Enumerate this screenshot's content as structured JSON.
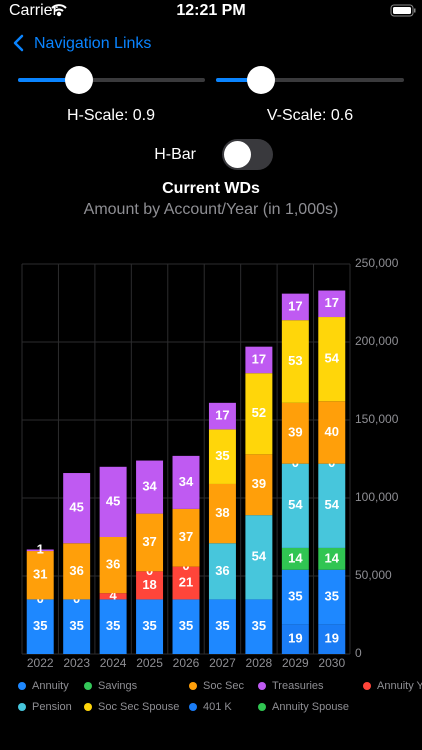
{
  "status_bar": {
    "carrier": "Carrier",
    "time": "12:21 PM"
  },
  "nav": {
    "back_label": "Navigation Links"
  },
  "controls": {
    "h_scale_label": "H-Scale: 0.9",
    "v_scale_label": "V-Scale: 0.6",
    "toggle_label": "H-Bar"
  },
  "chart_data": {
    "type": "stacked_bar",
    "title": "Current WDs",
    "subtitle": "Amount by Account/Year (in 1,000s)",
    "categories": [
      "2022",
      "2023",
      "2024",
      "2025",
      "2026",
      "2027",
      "2028",
      "2029",
      "2030"
    ],
    "series": [
      {
        "name": "401 K",
        "color": "#1a7cf5",
        "values": [
          null,
          null,
          null,
          null,
          null,
          null,
          null,
          19000,
          19000
        ],
        "value_labels": [
          null,
          null,
          null,
          null,
          null,
          null,
          null,
          "19",
          "19"
        ]
      },
      {
        "name": "Annuity",
        "color": "#1e88ff",
        "values": [
          35000,
          35000,
          35000,
          35000,
          35000,
          35000,
          35000,
          35000,
          35000
        ],
        "value_labels": [
          "35",
          "35",
          "35",
          "35",
          "35",
          "35",
          "35",
          "35",
          "35"
        ]
      },
      {
        "name": "Annuity Spouse",
        "color": "#30c552",
        "values": [
          null,
          null,
          null,
          null,
          null,
          null,
          null,
          14000,
          14000
        ],
        "value_labels": [
          null,
          null,
          null,
          null,
          null,
          null,
          null,
          "14",
          "14"
        ]
      },
      {
        "name": "Pension",
        "color": "#47c6dc",
        "values": [
          null,
          null,
          null,
          null,
          null,
          36000,
          54000,
          54000,
          54000
        ],
        "value_labels": [
          null,
          null,
          null,
          null,
          null,
          "36",
          "54",
          "54",
          "54"
        ]
      },
      {
        "name": "Annuity Y",
        "color": "#ff453a",
        "values": [
          0,
          0,
          4000,
          18000,
          21000,
          null,
          null,
          null,
          null
        ],
        "value_labels": [
          "0",
          "0",
          "4",
          "18",
          "21",
          null,
          null,
          null,
          null
        ]
      },
      {
        "name": "Savings",
        "color": "#34c759",
        "values": [
          null,
          null,
          null,
          0,
          0,
          null,
          null,
          0,
          0
        ],
        "value_labels": [
          null,
          null,
          null,
          "0",
          "0",
          null,
          null,
          "0",
          "0"
        ]
      },
      {
        "name": "Soc Sec",
        "color": "#ff9f0a",
        "values": [
          31000,
          36000,
          36000,
          37000,
          37000,
          38000,
          39000,
          39000,
          40000
        ],
        "value_labels": [
          "31",
          "36",
          "36",
          "37",
          "37",
          "38",
          "39",
          "39",
          "40"
        ]
      },
      {
        "name": "Soc Sec Spouse",
        "color": "#ffd60a",
        "values": [
          null,
          null,
          null,
          null,
          null,
          35000,
          52000,
          53000,
          54000
        ],
        "value_labels": [
          null,
          null,
          null,
          null,
          null,
          "35",
          "52",
          "53",
          "54"
        ]
      },
      {
        "name": "Treasuries",
        "color": "#bf5af2",
        "values": [
          1000,
          45000,
          45000,
          34000,
          34000,
          17000,
          17000,
          17000,
          17000
        ],
        "value_labels": [
          "1",
          "45",
          "45",
          "34",
          "34",
          "17",
          "17",
          "17",
          "17"
        ]
      }
    ],
    "ylim": [
      0,
      250000
    ],
    "yticks": [
      0,
      {
        "value": 50000,
        "label": "50,000"
      },
      {
        "value": 100000,
        "label": "100,000"
      },
      {
        "value": 150000,
        "label": "150,000"
      },
      {
        "value": 200000,
        "label": "200,000"
      },
      {
        "value": 250000,
        "label": "250,000"
      }
    ],
    "grid": true
  }
}
